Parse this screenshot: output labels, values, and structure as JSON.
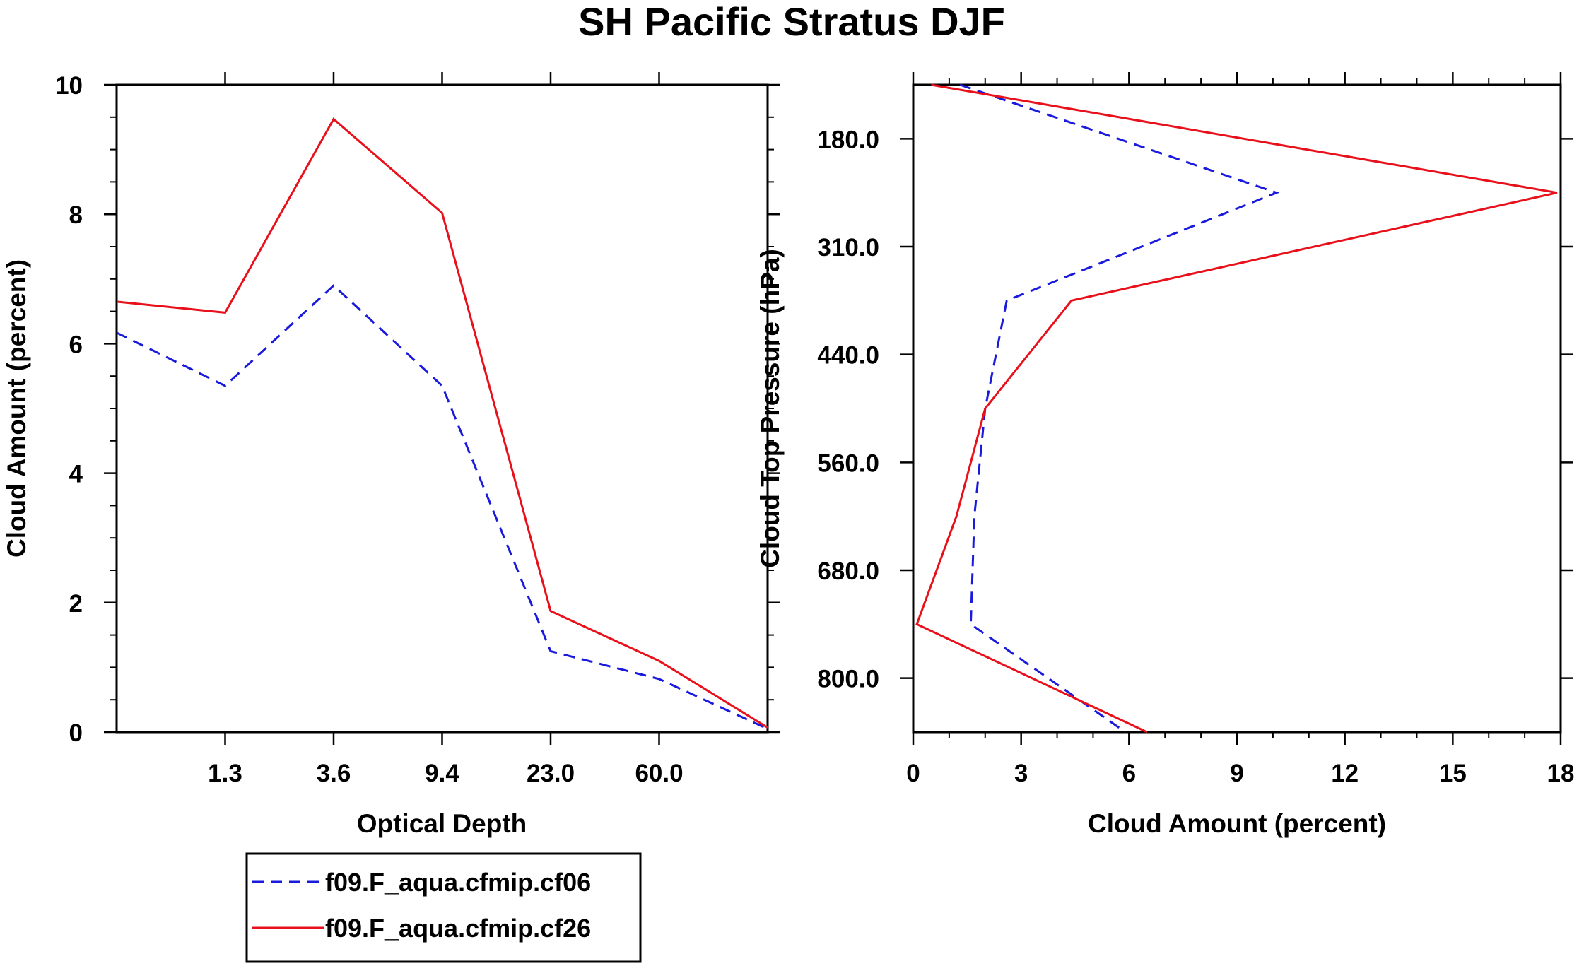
{
  "title": "SH Pacific Stratus DJF",
  "colors": {
    "series_cf06": "#1a1adc",
    "series_cf26": "#e8101a",
    "axis": "#000000"
  },
  "legend": {
    "placement": "bottom-left",
    "items": [
      {
        "label": "f09.F_aqua.cfmip.cf06",
        "style": "dashed",
        "color": "#1a1adc"
      },
      {
        "label": "f09.F_aqua.cfmip.cf26",
        "style": "solid",
        "color": "#e8101a"
      }
    ]
  },
  "chart_data": [
    {
      "type": "line",
      "xlabel": "Optical Depth",
      "ylabel": "Cloud Amount (percent)",
      "x_ticks": [
        "1.3",
        "3.6",
        "9.4",
        "23.0",
        "60.0"
      ],
      "y_ticks": [
        "0",
        "2",
        "4",
        "6",
        "8",
        "10"
      ],
      "ylim": [
        0,
        10
      ],
      "x_bins": 7,
      "series": [
        {
          "name": "f09.F_aqua.cfmip.cf06",
          "style": "dashed",
          "values": [
            6.17,
            5.35,
            6.9,
            5.35,
            1.25,
            0.82,
            0.05
          ]
        },
        {
          "name": "f09.F_aqua.cfmip.cf26",
          "style": "solid",
          "values": [
            6.65,
            6.48,
            9.47,
            8.02,
            1.87,
            1.1,
            0.07
          ]
        }
      ]
    },
    {
      "type": "line",
      "xlabel": "Cloud Amount (percent)",
      "ylabel": "Cloud Top Pressure (hPa)",
      "x_ticks": [
        "0",
        "3",
        "6",
        "9",
        "12",
        "15",
        "18"
      ],
      "xlim": [
        0,
        18
      ],
      "y_ticks": [
        "180.0",
        "310.0",
        "440.0",
        "560.0",
        "680.0",
        "800.0"
      ],
      "y_levels": 7,
      "series": [
        {
          "name": "f09.F_aqua.cfmip.cf06",
          "style": "dashed",
          "values": [
            1.3,
            10.1,
            2.6,
            2.0,
            1.7,
            1.6,
            5.9
          ]
        },
        {
          "name": "f09.F_aqua.cfmip.cf26",
          "style": "solid",
          "values": [
            0.5,
            17.9,
            4.4,
            2.0,
            1.2,
            0.1,
            6.5
          ]
        }
      ]
    }
  ]
}
